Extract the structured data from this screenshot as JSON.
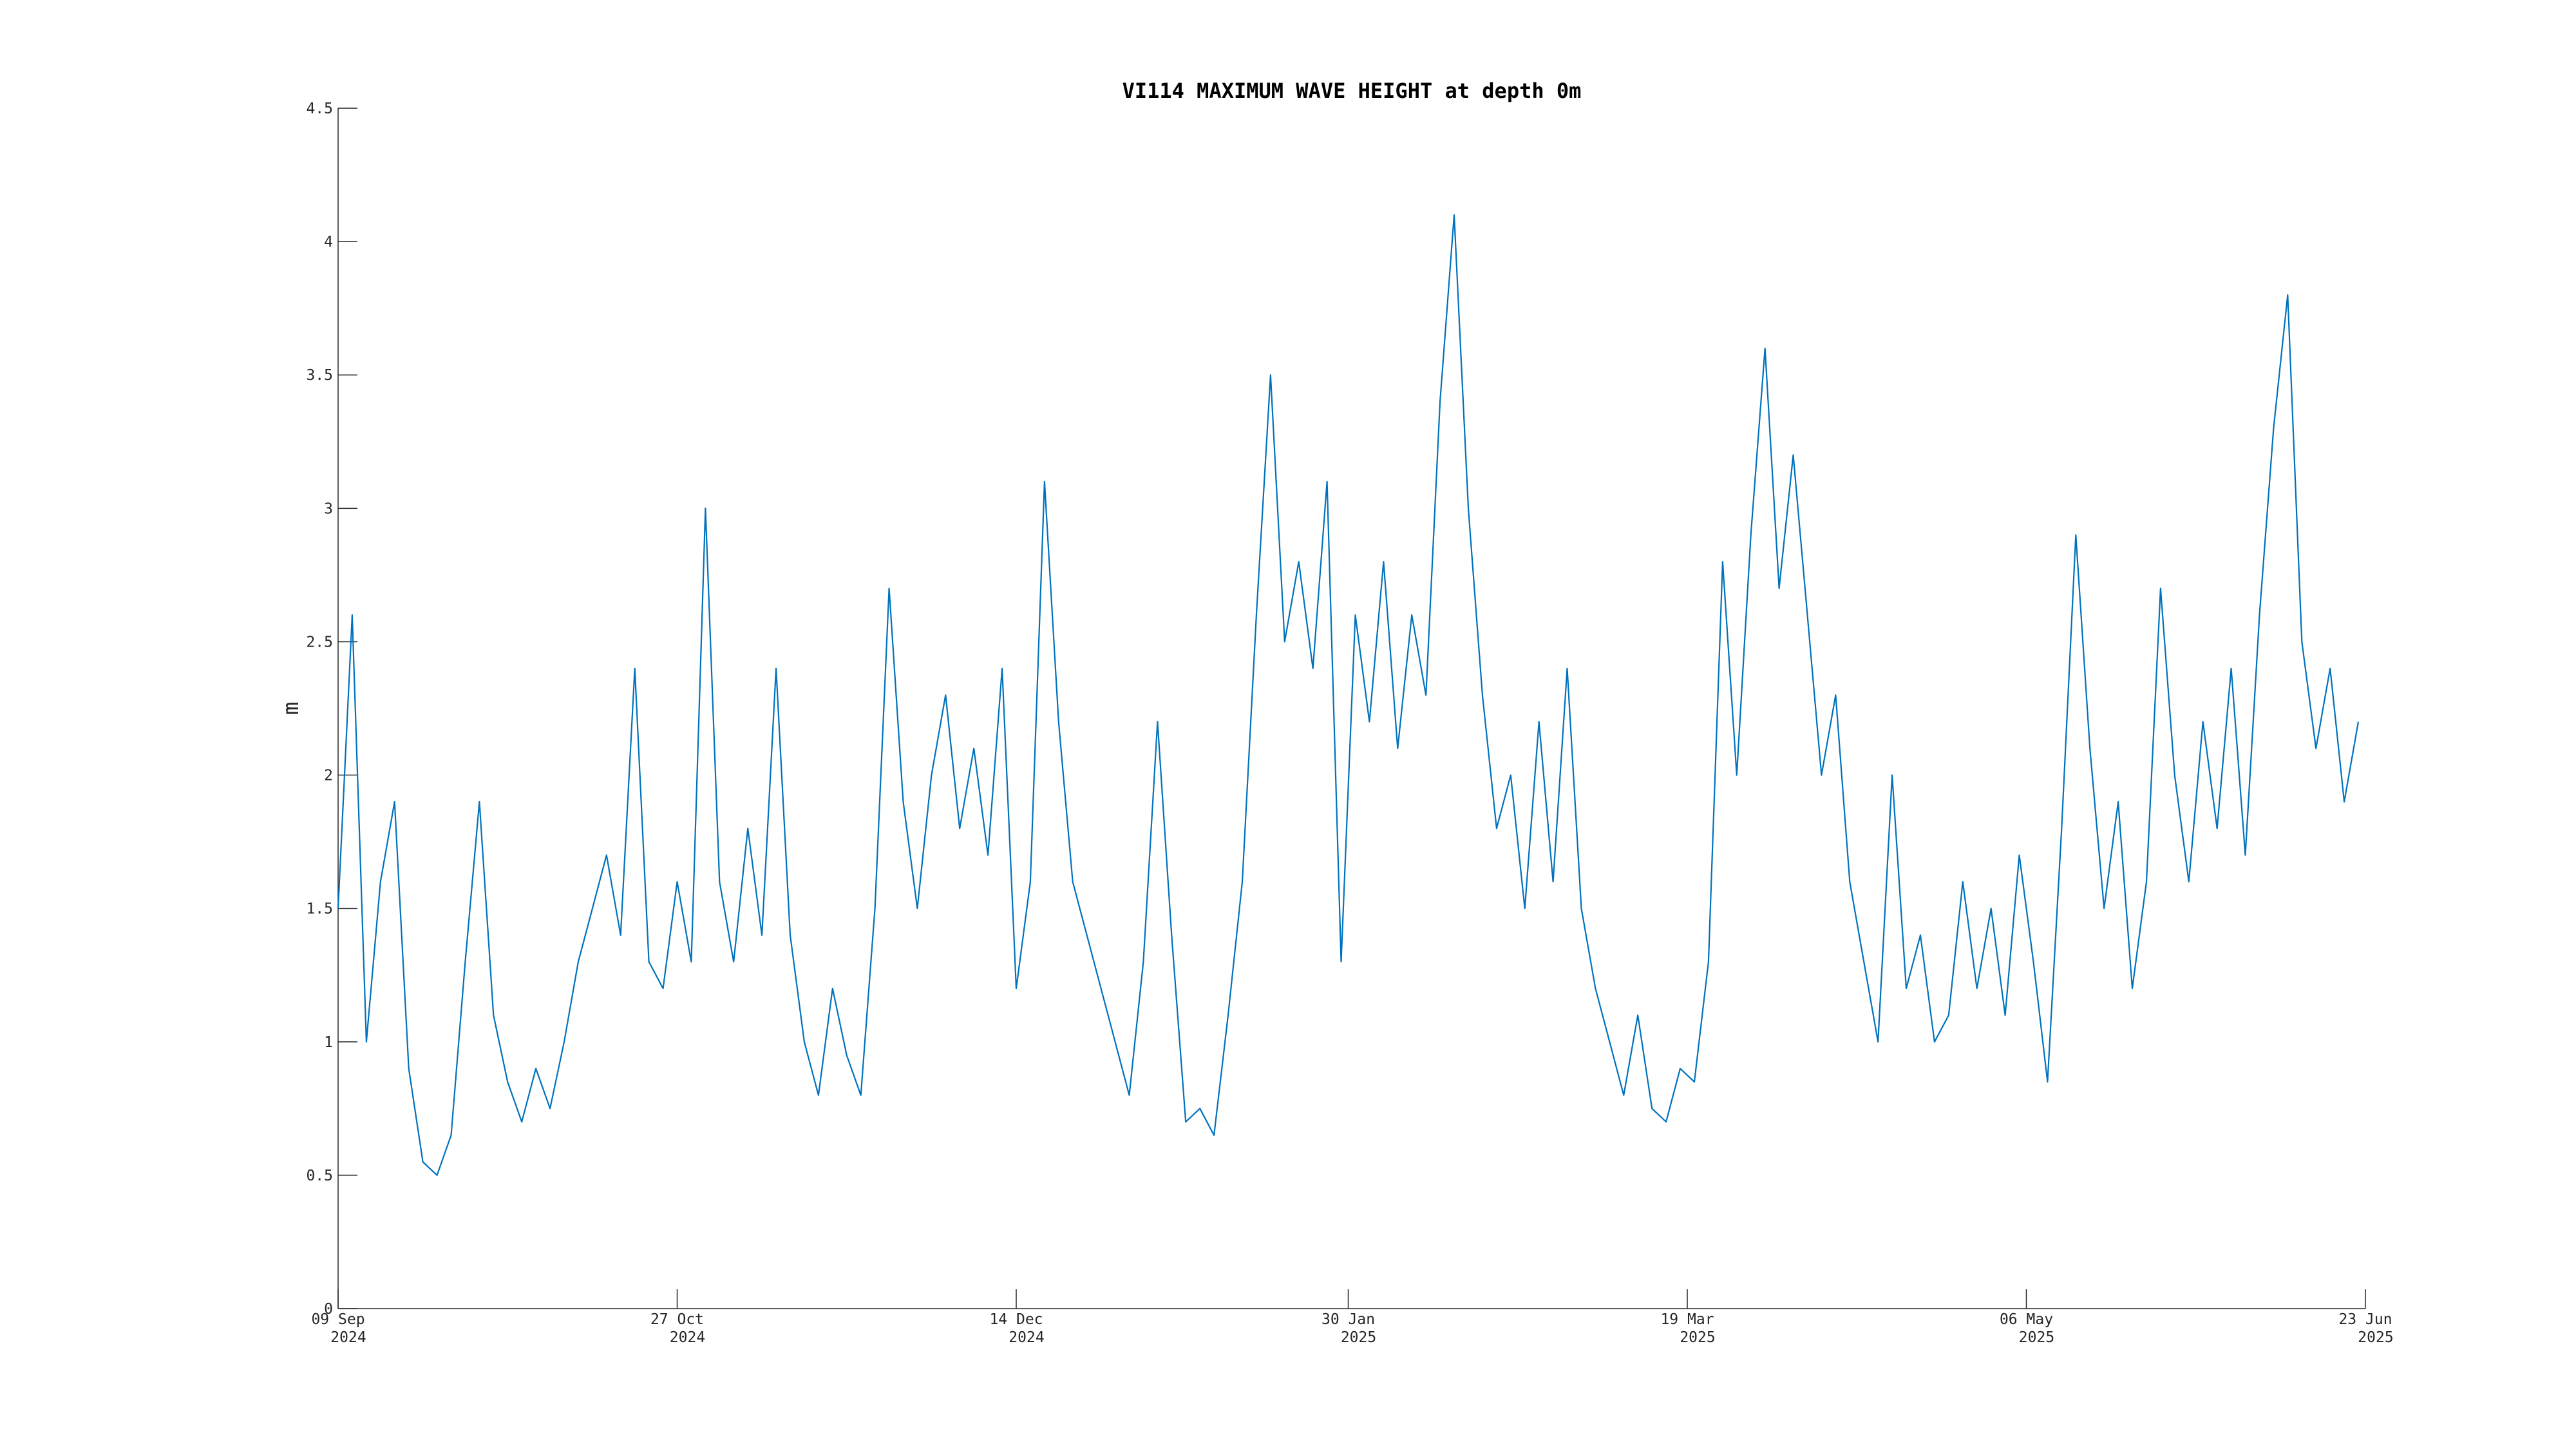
{
  "chart_data": {
    "type": "line",
    "title": "VI114 MAXIMUM WAVE HEIGHT at depth 0m",
    "y_label": "m",
    "color": "#0072bd",
    "grid": false,
    "xlim": [
      "2024-09-09",
      "2025-06-23"
    ],
    "xticks": [
      {
        "value": "2024-09-09",
        "label": "09 Sep",
        "sublabel": "2024"
      },
      {
        "value": "2024-10-27",
        "label": "27 Oct",
        "sublabel": "2024"
      },
      {
        "value": "2024-12-14",
        "label": "14 Dec",
        "sublabel": "2024"
      },
      {
        "value": "2025-01-30",
        "label": "30 Jan",
        "sublabel": "2025"
      },
      {
        "value": "2025-03-19",
        "label": "19 Mar",
        "sublabel": "2025"
      },
      {
        "value": "2025-05-06",
        "label": "06 May",
        "sublabel": "2025"
      },
      {
        "value": "2025-06-23",
        "label": "23 Jun",
        "sublabel": "2025"
      }
    ],
    "ylim": [
      0,
      4.5
    ],
    "yticks": [
      0,
      0.5,
      1,
      1.5,
      2,
      2.5,
      3,
      3.5,
      4,
      4.5
    ],
    "x": [
      "2024-09-09",
      "2024-09-11",
      "2024-09-13",
      "2024-09-15",
      "2024-09-17",
      "2024-09-19",
      "2024-09-21",
      "2024-09-23",
      "2024-09-25",
      "2024-09-27",
      "2024-09-29",
      "2024-10-01",
      "2024-10-03",
      "2024-10-05",
      "2024-10-07",
      "2024-10-09",
      "2024-10-11",
      "2024-10-13",
      "2024-10-15",
      "2024-10-17",
      "2024-10-19",
      "2024-10-21",
      "2024-10-23",
      "2024-10-25",
      "2024-10-27",
      "2024-10-29",
      "2024-10-31",
      "2024-11-02",
      "2024-11-04",
      "2024-11-06",
      "2024-11-08",
      "2024-11-10",
      "2024-11-12",
      "2024-11-14",
      "2024-11-16",
      "2024-11-18",
      "2024-11-20",
      "2024-11-22",
      "2024-11-24",
      "2024-11-26",
      "2024-11-28",
      "2024-11-30",
      "2024-12-02",
      "2024-12-04",
      "2024-12-06",
      "2024-12-08",
      "2024-12-10",
      "2024-12-12",
      "2024-12-14",
      "2024-12-16",
      "2024-12-18",
      "2024-12-20",
      "2024-12-22",
      "2024-12-24",
      "2024-12-26",
      "2024-12-28",
      "2024-12-30",
      "2025-01-01",
      "2025-01-03",
      "2025-01-05",
      "2025-01-07",
      "2025-01-09",
      "2025-01-11",
      "2025-01-13",
      "2025-01-15",
      "2025-01-17",
      "2025-01-19",
      "2025-01-21",
      "2025-01-23",
      "2025-01-25",
      "2025-01-27",
      "2025-01-29",
      "2025-01-31",
      "2025-02-02",
      "2025-02-04",
      "2025-02-06",
      "2025-02-08",
      "2025-02-10",
      "2025-02-12",
      "2025-02-14",
      "2025-02-16",
      "2025-02-18",
      "2025-02-20",
      "2025-02-22",
      "2025-02-24",
      "2025-02-26",
      "2025-02-28",
      "2025-03-02",
      "2025-03-04",
      "2025-03-06",
      "2025-03-08",
      "2025-03-10",
      "2025-03-12",
      "2025-03-14",
      "2025-03-16",
      "2025-03-18",
      "2025-03-20",
      "2025-03-22",
      "2025-03-24",
      "2025-03-26",
      "2025-03-28",
      "2025-03-30",
      "2025-04-01",
      "2025-04-03",
      "2025-04-05",
      "2025-04-07",
      "2025-04-09",
      "2025-04-11",
      "2025-04-13",
      "2025-04-15",
      "2025-04-17",
      "2025-04-19",
      "2025-04-21",
      "2025-04-23",
      "2025-04-25",
      "2025-04-27",
      "2025-04-29",
      "2025-05-01",
      "2025-05-03",
      "2025-05-05",
      "2025-05-07",
      "2025-05-09",
      "2025-05-11",
      "2025-05-13",
      "2025-05-15",
      "2025-05-17",
      "2025-05-19",
      "2025-05-21",
      "2025-05-23",
      "2025-05-25",
      "2025-05-27",
      "2025-05-29",
      "2025-05-31",
      "2025-06-02",
      "2025-06-04",
      "2025-06-06",
      "2025-06-08",
      "2025-06-10",
      "2025-06-12",
      "2025-06-14",
      "2025-06-16",
      "2025-06-18",
      "2025-06-20",
      "2025-06-22"
    ],
    "values": [
      1.5,
      2.6,
      1.0,
      1.6,
      1.9,
      0.9,
      0.55,
      0.5,
      0.65,
      1.3,
      1.9,
      1.1,
      0.85,
      0.7,
      0.9,
      0.75,
      1.0,
      1.3,
      1.5,
      1.7,
      1.4,
      2.4,
      1.3,
      1.2,
      1.6,
      1.3,
      3.0,
      1.6,
      1.3,
      1.8,
      1.4,
      2.4,
      1.4,
      1.0,
      0.8,
      1.2,
      0.95,
      0.8,
      1.5,
      2.7,
      1.9,
      1.5,
      2.0,
      2.3,
      1.8,
      2.1,
      1.7,
      2.4,
      1.2,
      1.6,
      3.1,
      2.2,
      1.6,
      1.4,
      1.2,
      1.0,
      0.8,
      1.3,
      2.2,
      1.4,
      0.7,
      0.75,
      0.65,
      1.1,
      1.6,
      2.6,
      3.5,
      2.5,
      2.8,
      2.4,
      3.1,
      1.3,
      2.6,
      2.2,
      2.8,
      2.1,
      2.6,
      2.3,
      3.4,
      4.1,
      3.0,
      2.3,
      1.8,
      2.0,
      1.5,
      2.2,
      1.6,
      2.4,
      1.5,
      1.2,
      1.0,
      0.8,
      1.1,
      0.75,
      0.7,
      0.9,
      0.85,
      1.3,
      2.8,
      2.0,
      2.9,
      3.6,
      2.7,
      3.2,
      2.6,
      2.0,
      2.3,
      1.6,
      1.3,
      1.0,
      2.0,
      1.2,
      1.4,
      1.0,
      1.1,
      1.6,
      1.2,
      1.5,
      1.1,
      1.7,
      1.3,
      0.85,
      1.8,
      2.9,
      2.1,
      1.5,
      1.9,
      1.2,
      1.6,
      2.7,
      2.0,
      1.6,
      2.2,
      1.8,
      2.4,
      1.7,
      2.6,
      3.3,
      3.8,
      2.5,
      2.1,
      2.4,
      1.9,
      2.2
    ]
  }
}
